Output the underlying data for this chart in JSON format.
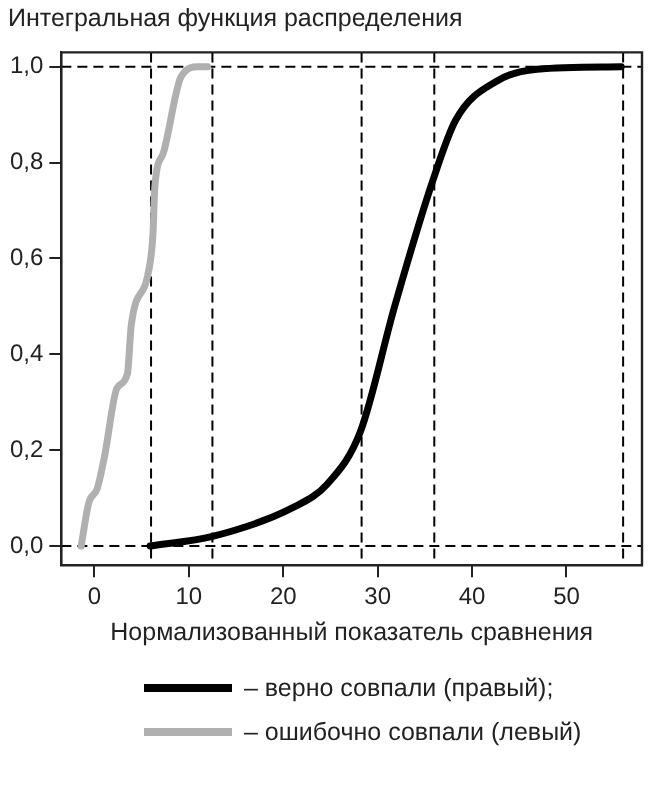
{
  "chart_data": {
    "type": "line",
    "ylabel": "Интегральная функция распределения",
    "xlabel": "Нормализованный показатель сравнения",
    "xlim": [
      -3.5,
      58
    ],
    "ylim": [
      -0.04,
      1.03
    ],
    "xticks": [
      0,
      10,
      20,
      30,
      40,
      50
    ],
    "yticks": [
      {
        "value": 0,
        "label": "0,0"
      },
      {
        "value": 0.2,
        "label": "0,2"
      },
      {
        "value": 0.4,
        "label": "0,4"
      },
      {
        "value": 0.6,
        "label": "0,6"
      },
      {
        "value": 0.8,
        "label": "0,8"
      },
      {
        "value": 1,
        "label": "1,0"
      }
    ],
    "series": [
      {
        "name": "– верно совпали (правый);",
        "color": "#000000",
        "x": [
          5.9,
          12.5,
          21,
          24.7,
          28.2,
          31.8,
          35.8,
          38.3,
          42.6,
          46.9,
          55.8
        ],
        "values": [
          0,
          0.02,
          0.08,
          0.13,
          0.24,
          0.5,
          0.76,
          0.89,
          0.97,
          0.995,
          1
        ]
      },
      {
        "name": "– ошибочно совпали (левый)",
        "color": "#b0b0b0",
        "x": [
          -1.4,
          -0.6,
          0.3,
          1.1,
          2.4,
          3.5,
          3.9,
          5.7,
          6.2,
          6.4,
          7.3,
          9.2,
          11,
          12
        ],
        "values": [
          0,
          0.09,
          0.12,
          0.19,
          0.33,
          0.36,
          0.46,
          0.57,
          0.65,
          0.75,
          0.82,
          0.98,
          1,
          1
        ]
      }
    ],
    "ref_lines": [
      {
        "axis": "x",
        "value": 6,
        "line_style": "dashed",
        "color": "#000000"
      },
      {
        "axis": "x",
        "value": 12.5,
        "line_style": "dashed",
        "color": "#000000"
      },
      {
        "axis": "x",
        "value": 28.3,
        "line_style": "dashed",
        "color": "#000000"
      },
      {
        "axis": "x",
        "value": 36,
        "line_style": "dashed",
        "color": "#000000"
      },
      {
        "axis": "x",
        "value": 56,
        "line_style": "dashed",
        "color": "#000000"
      },
      {
        "axis": "y",
        "value": 0,
        "line_style": "dashed",
        "color": "#000000"
      },
      {
        "axis": "y",
        "value": 1,
        "line_style": "dashed",
        "color": "#000000"
      }
    ],
    "grid": false,
    "legend": "bottom",
    "marker": "none",
    "line_style": "solid"
  }
}
